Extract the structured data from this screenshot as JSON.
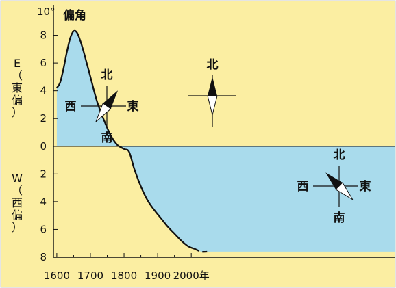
{
  "chart_data": {
    "type": "line",
    "title": "偏角",
    "ylabel": "10°",
    "xlabel": "",
    "x_suffix": "年",
    "east_label": [
      "E",
      "（",
      "東",
      "偏",
      "）"
    ],
    "west_label": [
      "W",
      "（",
      "西",
      "偏",
      "）"
    ],
    "xlim": [
      1590,
      2660
    ],
    "ylim": [
      -8,
      10
    ],
    "x_ticks": [
      1600,
      1700,
      1800,
      1900,
      2000
    ],
    "y_ticks": [
      8,
      6,
      4,
      2,
      0,
      -2,
      -4,
      -6,
      -8
    ],
    "y_tick_labels": [
      "8",
      "6",
      "4",
      "2",
      "0",
      "2",
      "4",
      "6",
      "8"
    ],
    "grid": false,
    "legend": "none",
    "colors": {
      "background": "#fbeea2",
      "area": "#a9dbec",
      "line": "#111111"
    },
    "series": [
      {
        "name": "",
        "x": [
          1600,
          1610,
          1620,
          1630,
          1640,
          1650,
          1660,
          1670,
          1680,
          1700,
          1720,
          1740,
          1760,
          1780,
          1800,
          1815,
          1830,
          1850,
          1870,
          1890,
          1910,
          1930,
          1950,
          1970,
          1990,
          2010
        ],
        "y": [
          4.2,
          4.6,
          5.6,
          6.8,
          7.8,
          8.3,
          8.2,
          7.6,
          6.8,
          5.0,
          3.2,
          1.9,
          0.8,
          0.1,
          -0.2,
          -0.4,
          -1.6,
          -2.9,
          -3.9,
          -4.6,
          -5.2,
          -5.8,
          -6.3,
          -6.8,
          -7.2,
          -7.4
        ]
      },
      {
        "name": "",
        "style": "dashed",
        "x": [
          2010,
          2030,
          2050
        ],
        "y": [
          -7.4,
          -7.6,
          -7.6
        ]
      }
    ],
    "compass": [
      {
        "north": "北",
        "south": "南",
        "east": "東",
        "west": "西",
        "needle_deg": 35
      },
      {
        "north": "北",
        "needle_deg": 0
      },
      {
        "north": "北",
        "south": "南",
        "east": "東",
        "west": "西",
        "needle_deg": -45
      }
    ]
  }
}
